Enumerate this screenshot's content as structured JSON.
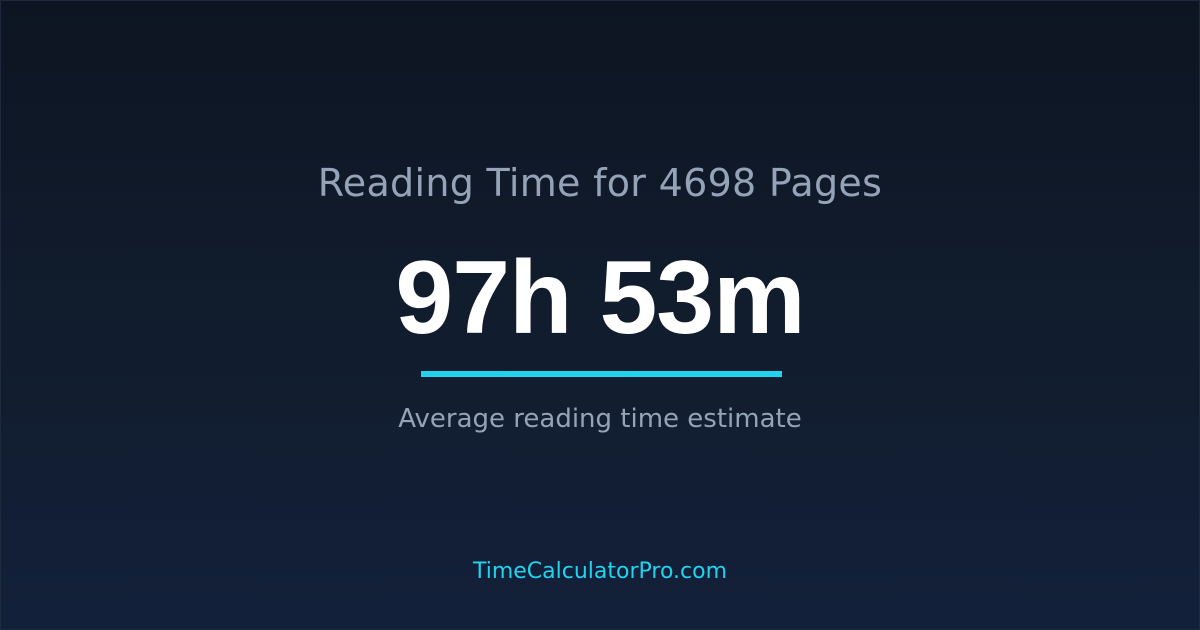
{
  "card": {
    "title": "Reading Time for 4698 Pages",
    "value": "97h 53m",
    "subtitle": "Average reading time estimate",
    "footer": "TimeCalculatorPro.com"
  },
  "colors": {
    "accent": "#22d3ee",
    "muted_text": "#94a3b8",
    "value_text": "#ffffff",
    "background": "#0f172a"
  }
}
